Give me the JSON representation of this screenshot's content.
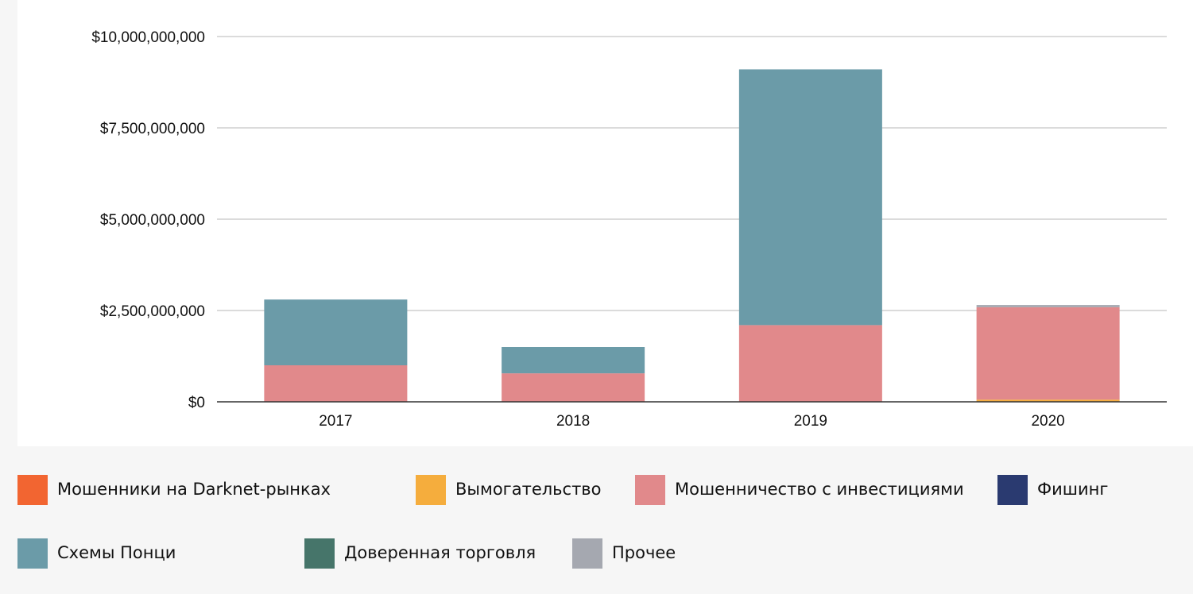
{
  "chart_data": {
    "type": "bar",
    "stacked": true,
    "categories": [
      "2017",
      "2018",
      "2019",
      "2020"
    ],
    "series": [
      {
        "name": "Мошенники на Darknet-рынках",
        "color": "#f26531",
        "values": [
          0,
          0,
          0,
          0
        ]
      },
      {
        "name": "Вымогательство",
        "color": "#f5ad3d",
        "values": [
          0,
          0,
          0,
          60000000
        ]
      },
      {
        "name": "Мошенничество с инвестициями",
        "color": "#e1898b",
        "values": [
          1000000000,
          780000000,
          2100000000,
          2530000000
        ]
      },
      {
        "name": "Фишинг",
        "color": "#2a3a70",
        "values": [
          0,
          0,
          0,
          0
        ]
      },
      {
        "name": "Схемы Понци",
        "color": "#6b9ba8",
        "values": [
          1800000000,
          720000000,
          7000000000,
          0
        ]
      },
      {
        "name": "Доверенная торговля",
        "color": "#46756a",
        "values": [
          0,
          0,
          0,
          0
        ]
      },
      {
        "name": "Прочее",
        "color": "#a5a8b0",
        "values": [
          0,
          0,
          0,
          60000000
        ]
      }
    ],
    "ylim": [
      0,
      10000000000
    ],
    "yticks": [
      "$0",
      "$2,500,000,000",
      "$5,000,000,000",
      "$7,500,000,000",
      "$10,000,000,000"
    ],
    "ytick_values": [
      0,
      2500000000,
      5000000000,
      7500000000,
      10000000000
    ],
    "grid": true,
    "legend_position": "bottom"
  }
}
